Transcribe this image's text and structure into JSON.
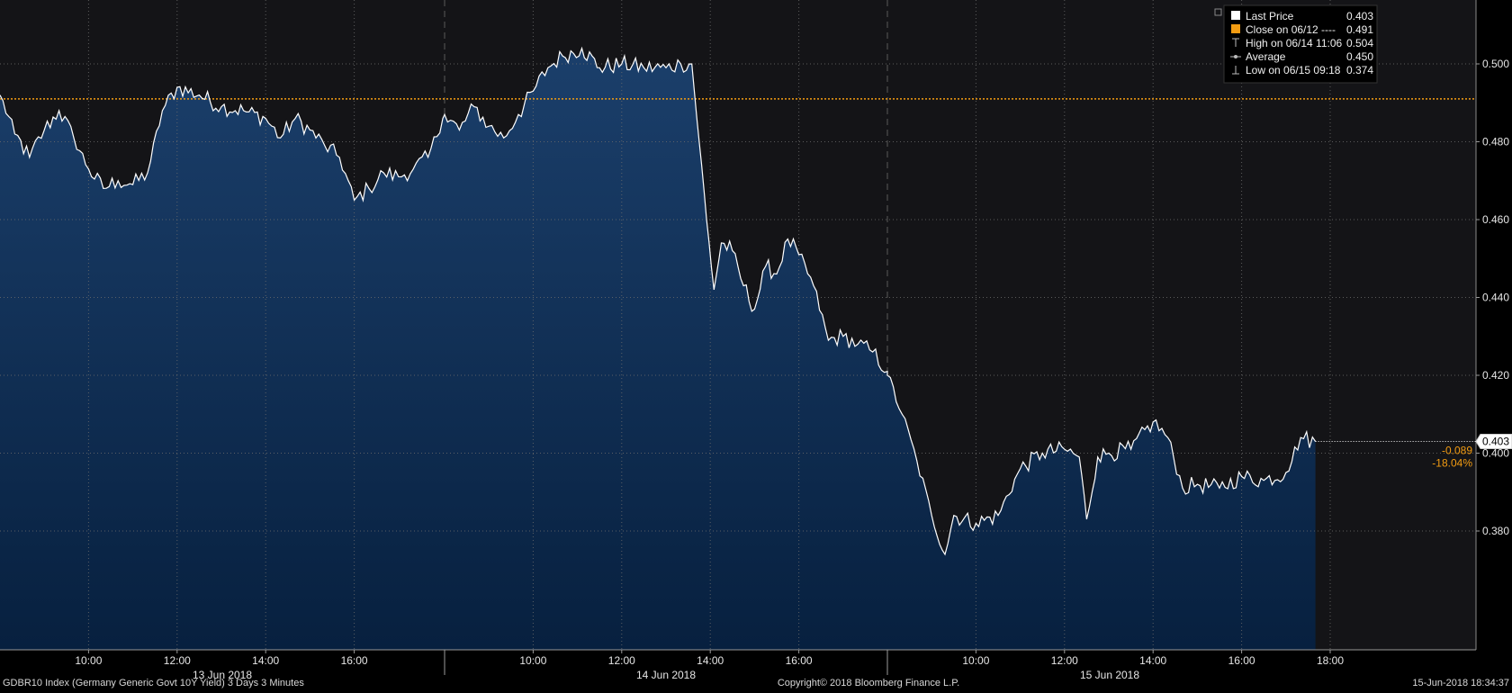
{
  "chart_data": {
    "type": "area",
    "ylim": [
      0.365,
      0.505
    ],
    "y_ticks": [
      "0.380",
      "0.400",
      "0.420",
      "0.440",
      "0.460",
      "0.480",
      "0.500"
    ],
    "grid": true,
    "legend_position": "top-right",
    "series": [
      {
        "name": "Last Price",
        "anchors": [
          [
            "06-13 08:00",
            0.492
          ],
          [
            "06-13 08:20",
            0.482
          ],
          [
            "06-13 08:40",
            0.476
          ],
          [
            "06-13 09:00",
            0.483
          ],
          [
            "06-13 09:20",
            0.488
          ],
          [
            "06-13 09:40",
            0.481
          ],
          [
            "06-13 10:00",
            0.473
          ],
          [
            "06-13 10:20",
            0.468
          ],
          [
            "06-13 10:40",
            0.47
          ],
          [
            "06-13 11:00",
            0.469
          ],
          [
            "06-13 11:20",
            0.472
          ],
          [
            "06-13 11:40",
            0.488
          ],
          [
            "06-13 12:00",
            0.494
          ],
          [
            "06-13 12:30",
            0.492
          ],
          [
            "06-13 13:00",
            0.489
          ],
          [
            "06-13 13:30",
            0.488
          ],
          [
            "06-13 14:00",
            0.486
          ],
          [
            "06-13 14:20",
            0.481
          ],
          [
            "06-13 14:40",
            0.486
          ],
          [
            "06-13 15:00",
            0.483
          ],
          [
            "06-13 15:20",
            0.479
          ],
          [
            "06-13 15:40",
            0.476
          ],
          [
            "06-13 16:00",
            0.465
          ],
          [
            "06-13 16:20",
            0.468
          ],
          [
            "06-13 16:40",
            0.472
          ],
          [
            "06-13 17:00",
            0.471
          ],
          [
            "06-13 17:20",
            0.473
          ],
          [
            "06-13 17:40",
            0.476
          ],
          [
            "06-13 18:00",
            0.486
          ],
          [
            "06-14 08:00",
            0.487
          ],
          [
            "06-14 08:20",
            0.483
          ],
          [
            "06-14 08:40",
            0.489
          ],
          [
            "06-14 09:00",
            0.484
          ],
          [
            "06-14 09:20",
            0.481
          ],
          [
            "06-14 09:40",
            0.487
          ],
          [
            "06-14 10:00",
            0.493
          ],
          [
            "06-14 10:20",
            0.499
          ],
          [
            "06-14 10:40",
            0.502
          ],
          [
            "06-14 11:06",
            0.504
          ],
          [
            "06-14 11:30",
            0.499
          ],
          [
            "06-14 12:00",
            0.5
          ],
          [
            "06-14 12:30",
            0.499
          ],
          [
            "06-14 13:00",
            0.499
          ],
          [
            "06-14 13:20",
            0.5
          ],
          [
            "06-14 13:35",
            0.5
          ],
          [
            "06-14 13:45",
            0.48
          ],
          [
            "06-14 13:55",
            0.46
          ],
          [
            "06-14 14:05",
            0.442
          ],
          [
            "06-14 14:15",
            0.454
          ],
          [
            "06-14 14:30",
            0.452
          ],
          [
            "06-14 14:45",
            0.443
          ],
          [
            "06-14 15:00",
            0.437
          ],
          [
            "06-14 15:15",
            0.448
          ],
          [
            "06-14 15:30",
            0.446
          ],
          [
            "06-14 15:45",
            0.455
          ],
          [
            "06-14 16:00",
            0.451
          ],
          [
            "06-14 16:20",
            0.443
          ],
          [
            "06-14 16:40",
            0.429
          ],
          [
            "06-14 17:00",
            0.43
          ],
          [
            "06-14 17:20",
            0.428
          ],
          [
            "06-14 17:40",
            0.426
          ],
          [
            "06-14 18:00",
            0.421
          ],
          [
            "06-15 08:00",
            0.42
          ],
          [
            "06-15 08:20",
            0.41
          ],
          [
            "06-15 08:40",
            0.398
          ],
          [
            "06-15 09:00",
            0.384
          ],
          [
            "06-15 09:18",
            0.374
          ],
          [
            "06-15 09:30",
            0.384
          ],
          [
            "06-15 10:00",
            0.382
          ],
          [
            "06-15 10:30",
            0.384
          ],
          [
            "06-15 11:00",
            0.396
          ],
          [
            "06-15 11:30",
            0.4
          ],
          [
            "06-15 12:00",
            0.401
          ],
          [
            "06-15 12:20",
            0.399
          ],
          [
            "06-15 12:30",
            0.383
          ],
          [
            "06-15 12:45",
            0.399
          ],
          [
            "06-15 13:00",
            0.4
          ],
          [
            "06-15 13:30",
            0.401
          ],
          [
            "06-15 14:00",
            0.408
          ],
          [
            "06-15 14:20",
            0.404
          ],
          [
            "06-15 14:40",
            0.391
          ],
          [
            "06-15 15:00",
            0.392
          ],
          [
            "06-15 15:30",
            0.391
          ],
          [
            "06-15 16:00",
            0.394
          ],
          [
            "06-15 16:30",
            0.393
          ],
          [
            "06-15 17:00",
            0.395
          ],
          [
            "06-15 17:20",
            0.404
          ],
          [
            "06-15 17:40",
            0.403
          ]
        ]
      },
      {
        "name": "Close on 06/12",
        "value": 0.491
      }
    ],
    "x_ticks": [
      {
        "day": 0,
        "label": "10:00"
      },
      {
        "day": 0,
        "label": "12:00"
      },
      {
        "day": 0,
        "label": "14:00"
      },
      {
        "day": 0,
        "label": "16:00"
      },
      {
        "day": 1,
        "label": "10:00"
      },
      {
        "day": 1,
        "label": "12:00"
      },
      {
        "day": 1,
        "label": "14:00"
      },
      {
        "day": 1,
        "label": "16:00"
      },
      {
        "day": 2,
        "label": "10:00"
      },
      {
        "day": 2,
        "label": "12:00"
      },
      {
        "day": 2,
        "label": "14:00"
      },
      {
        "day": 2,
        "label": "16:00"
      },
      {
        "day": 2,
        "label": "18:00"
      }
    ],
    "day_labels": [
      "13 Jun 2018",
      "14 Jun 2018",
      "15 Jun 2018"
    ],
    "legend": [
      {
        "label": "Last Price",
        "value": "0.403",
        "color": "#ffffff",
        "marker": "square"
      },
      {
        "label": "Close on 06/12 ----",
        "value": "0.491",
        "color": "#f39c12",
        "marker": "square"
      },
      {
        "label": "High on 06/14 11:06",
        "value": "0.504",
        "color": "#bbbbbb",
        "marker": "high"
      },
      {
        "label": "Average",
        "value": "0.450",
        "color": "#bbbbbb",
        "marker": "average"
      },
      {
        "label": "Low on 06/15 09:18",
        "value": "0.374",
        "color": "#bbbbbb",
        "marker": "low"
      }
    ],
    "last_value_label": "0.403",
    "change": "-0.089",
    "change_pct": "-18.04%",
    "colors": {
      "line": "#ffffff",
      "area": "#0f2d57",
      "close_line": "#f39c12",
      "change_text": "#f39c12"
    }
  },
  "footer": {
    "left": "GDBR10 Index (Germany Generic Govt 10Y Yield) 3 Days 3 Minutes",
    "center": "Copyright© 2018 Bloomberg Finance L.P.",
    "right": "15-Jun-2018 18:34:37"
  }
}
